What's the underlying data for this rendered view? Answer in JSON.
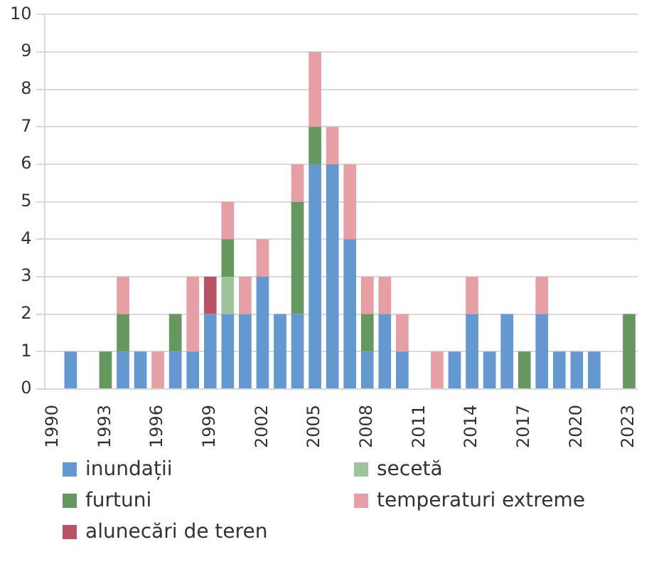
{
  "chart_data": {
    "type": "bar",
    "stacked": true,
    "categories": [
      "1990",
      null,
      null,
      "1993",
      null,
      null,
      "1996",
      null,
      null,
      "1999",
      null,
      null,
      "2002",
      null,
      null,
      "2005",
      null,
      null,
      "2008",
      null,
      null,
      "2011",
      null,
      null,
      "2014",
      null,
      null,
      "2017",
      null,
      null,
      "2020",
      null,
      null,
      "2023"
    ],
    "series": [
      {
        "name": "inundații",
        "color": "#6399d0",
        "values": [
          0,
          1,
          0,
          0,
          1,
          1,
          0,
          1,
          1,
          2,
          2,
          2,
          3,
          2,
          2,
          6,
          6,
          4,
          1,
          2,
          1,
          0,
          0,
          1,
          2,
          1,
          2,
          0,
          2,
          1,
          1,
          1,
          0,
          0
        ]
      },
      {
        "name": "secetă",
        "color": "#9dc49b",
        "values": [
          0,
          0,
          0,
          0,
          0,
          0,
          0,
          0,
          0,
          0,
          1,
          0,
          0,
          0,
          0,
          0,
          0,
          0,
          0,
          0,
          0,
          0,
          0,
          0,
          0,
          0,
          0,
          0,
          0,
          0,
          0,
          0,
          0,
          0
        ]
      },
      {
        "name": "furtuni",
        "color": "#65985f",
        "values": [
          0,
          0,
          0,
          1,
          1,
          0,
          0,
          1,
          0,
          0,
          1,
          0,
          0,
          0,
          3,
          1,
          0,
          0,
          1,
          0,
          0,
          0,
          0,
          0,
          0,
          0,
          0,
          1,
          0,
          0,
          0,
          0,
          0,
          2
        ]
      },
      {
        "name": "temperaturi extreme",
        "color": "#e6a0a5",
        "values": [
          0,
          0,
          0,
          0,
          1,
          0,
          1,
          0,
          2,
          0,
          1,
          1,
          1,
          0,
          1,
          2,
          1,
          2,
          1,
          1,
          1,
          0,
          1,
          0,
          1,
          0,
          0,
          0,
          1,
          0,
          0,
          0,
          0,
          0
        ]
      },
      {
        "name": "alunecări de teren",
        "color": "#bb5264",
        "values": [
          0,
          0,
          0,
          0,
          0,
          0,
          0,
          0,
          0,
          1,
          0,
          0,
          0,
          0,
          0,
          0,
          0,
          0,
          0,
          0,
          0,
          0,
          0,
          0,
          0,
          0,
          0,
          0,
          0,
          0,
          0,
          0,
          0,
          0
        ]
      }
    ],
    "ylim": [
      0,
      10
    ],
    "yticks": [
      0,
      1,
      2,
      3,
      4,
      5,
      6,
      7,
      8,
      9,
      10
    ],
    "grid": "y",
    "legend": "bottom"
  }
}
